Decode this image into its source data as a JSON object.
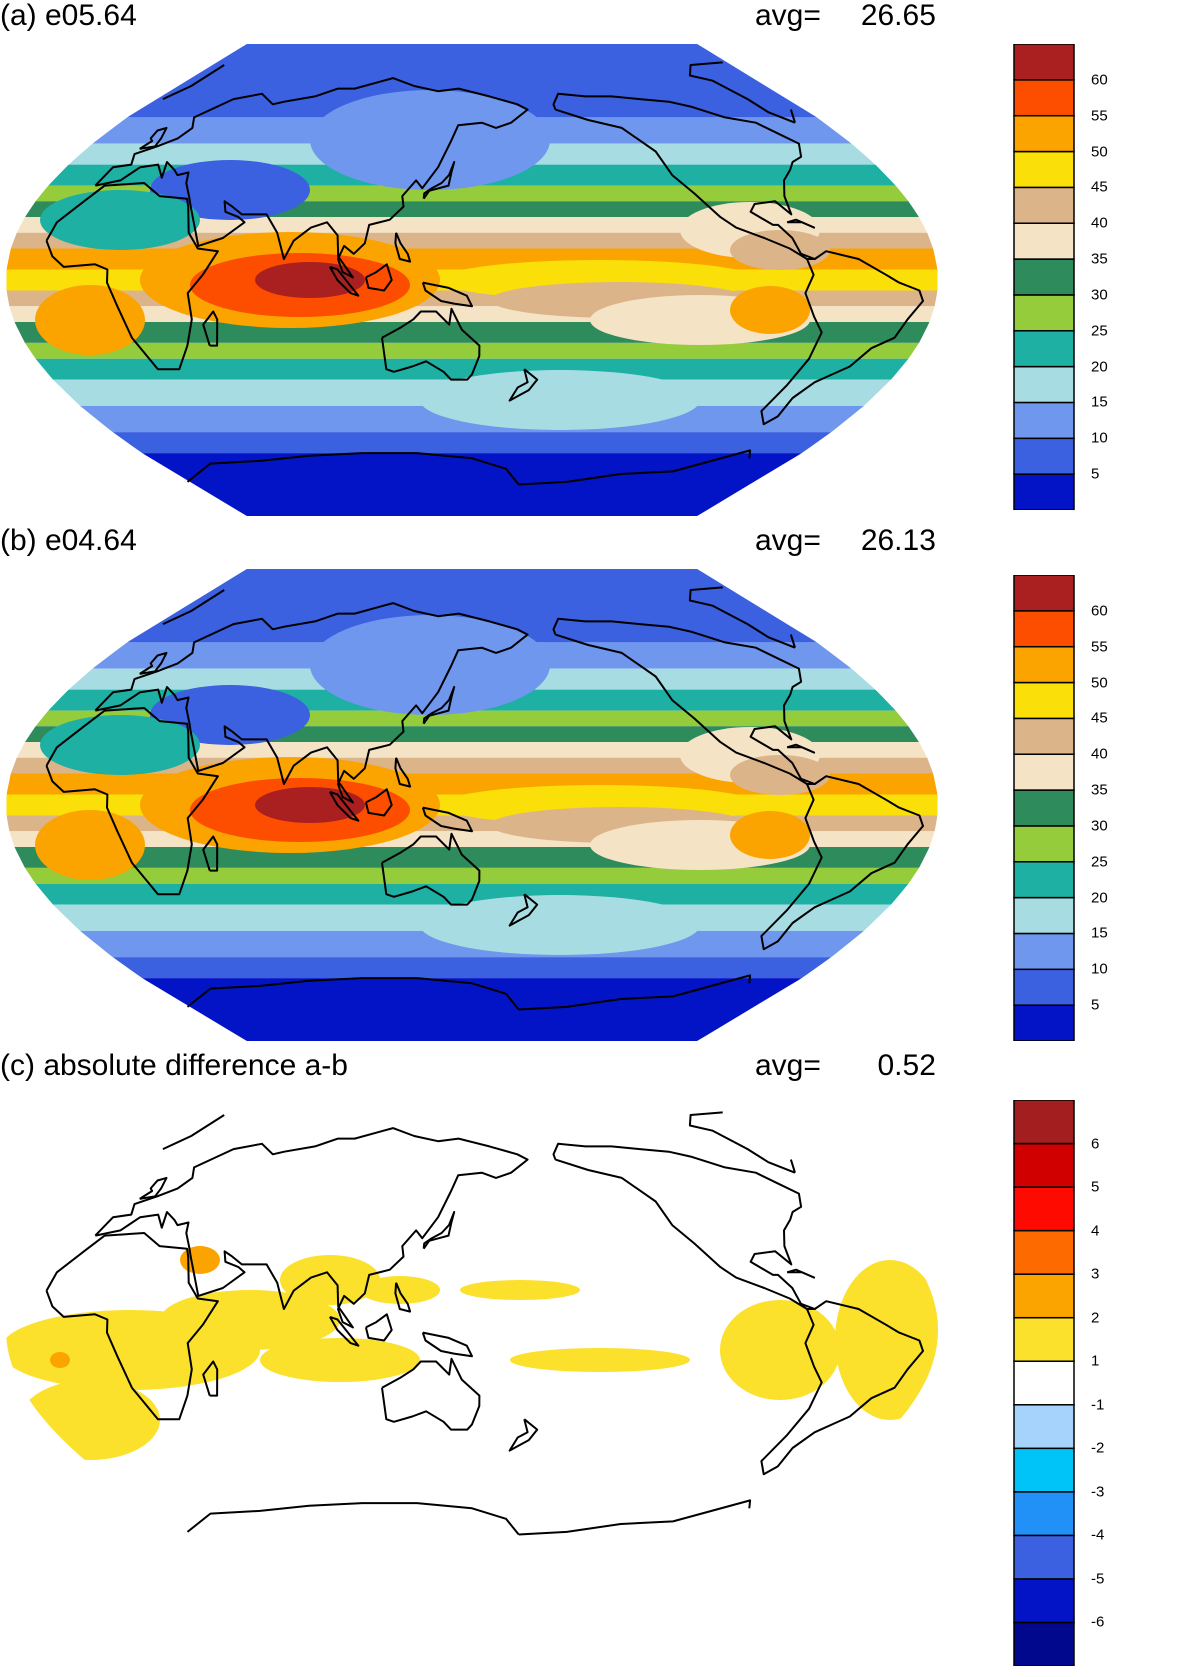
{
  "panels": [
    {
      "id": "a",
      "title": "(a) e05.64",
      "avg_label": "avg=",
      "avg_value": "26.65",
      "kind": "absolute",
      "colorbar": {
        "colors": [
          "#0314c6",
          "#3b60e0",
          "#6f97ee",
          "#a7dde2",
          "#1db0a3",
          "#94cc3c",
          "#2e8b5b",
          "#f5e3c6",
          "#dcb48a",
          "#fadf08",
          "#fba400",
          "#fd4e00",
          "#aa1f1f"
        ],
        "labels": [
          "5",
          "10",
          "15",
          "20",
          "25",
          "30",
          "35",
          "40",
          "45",
          "50",
          "55",
          "60"
        ]
      }
    },
    {
      "id": "b",
      "title": "(b) e04.64",
      "avg_label": "avg=",
      "avg_value": "26.13",
      "kind": "absolute",
      "colorbar": {
        "colors": [
          "#0314c6",
          "#3b60e0",
          "#6f97ee",
          "#a7dde2",
          "#1db0a3",
          "#94cc3c",
          "#2e8b5b",
          "#f5e3c6",
          "#dcb48a",
          "#fadf08",
          "#fba400",
          "#fd4e00",
          "#aa1f1f"
        ],
        "labels": [
          "5",
          "10",
          "15",
          "20",
          "25",
          "30",
          "35",
          "40",
          "45",
          "50",
          "55",
          "60"
        ]
      }
    },
    {
      "id": "c",
      "title": "(c) absolute difference a-b",
      "avg_label": "avg=",
      "avg_value": "0.52",
      "kind": "difference",
      "colorbar": {
        "colors": [
          "#02088e",
          "#0314c6",
          "#3b60e0",
          "#2191f7",
          "#00c3f8",
          "#a6d3fc",
          "#ffffff",
          "#fbe02c",
          "#fba400",
          "#fd6a00",
          "#ff0a00",
          "#d00000",
          "#a31e1e"
        ],
        "labels": [
          "-6",
          "-5",
          "-4",
          "-3",
          "-2",
          "-1",
          "1",
          "2",
          "3",
          "4",
          "5",
          "6"
        ]
      }
    }
  ]
}
